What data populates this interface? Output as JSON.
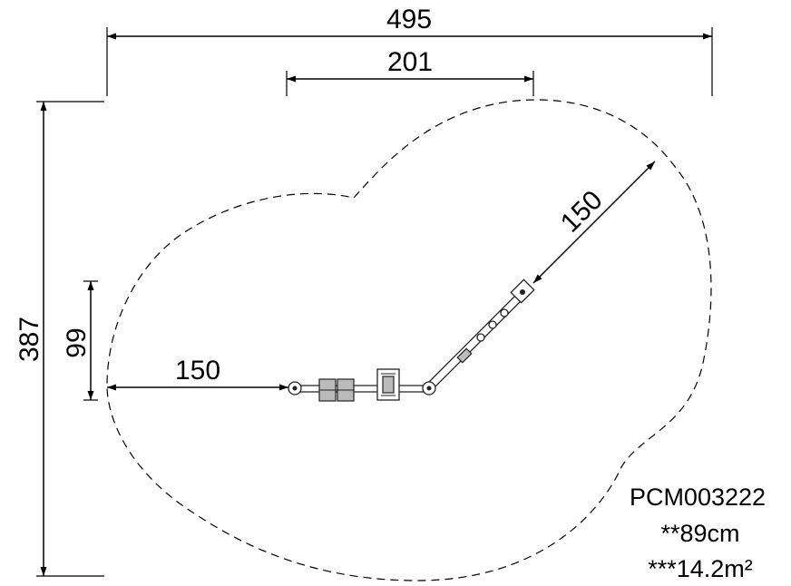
{
  "dimensions": {
    "overall_width": "495",
    "inner_width": "201",
    "overall_height": "387",
    "left_height": "99",
    "left_length": "150",
    "diagonal_length": "150"
  },
  "info": {
    "product_code": "PCM003222",
    "fall_height": "**89cm",
    "area": "***14.2m²"
  }
}
